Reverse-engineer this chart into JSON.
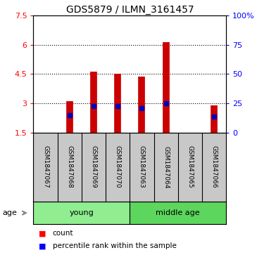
{
  "title": "GDS5879 / ILMN_3161457",
  "samples": [
    "GSM1847067",
    "GSM1847068",
    "GSM1847069",
    "GSM1847070",
    "GSM1847063",
    "GSM1847064",
    "GSM1847065",
    "GSM1847066"
  ],
  "bar_tops": [
    1.5,
    3.1,
    4.62,
    4.5,
    4.35,
    6.12,
    1.5,
    2.88
  ],
  "bar_base": 1.5,
  "blue_markers": [
    null,
    2.38,
    2.84,
    2.84,
    2.74,
    2.99,
    null,
    2.33
  ],
  "ylim_left": [
    1.5,
    7.5
  ],
  "ylim_right": [
    0,
    100
  ],
  "yticks_left": [
    1.5,
    3.0,
    4.5,
    6.0,
    7.5
  ],
  "yticks_right": [
    0,
    25,
    50,
    75,
    100
  ],
  "ytick_labels_left": [
    "1.5",
    "3",
    "4.5",
    "6",
    "7.5"
  ],
  "ytick_labels_right": [
    "0",
    "25",
    "50",
    "75",
    "100%"
  ],
  "groups": [
    {
      "label": "young",
      "indices": [
        0,
        1,
        2,
        3
      ],
      "color": "#90EE90"
    },
    {
      "label": "middle age",
      "indices": [
        4,
        5,
        6,
        7
      ],
      "color": "#5CD65C"
    }
  ],
  "bar_color": "#CC0000",
  "blue_color": "#0000BB",
  "bar_linewidth": 7,
  "grid_color": "black",
  "sample_bg_color": "#C8C8C8",
  "age_label": "age",
  "legend_items": [
    "count",
    "percentile rank within the sample"
  ]
}
